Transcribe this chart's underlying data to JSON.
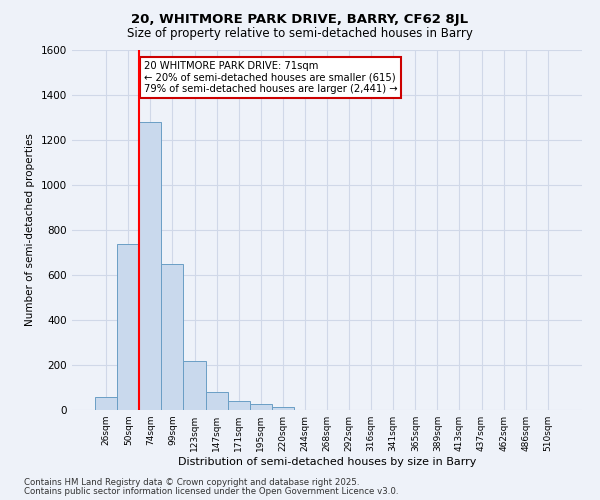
{
  "title1": "20, WHITMORE PARK DRIVE, BARRY, CF62 8JL",
  "title2": "Size of property relative to semi-detached houses in Barry",
  "xlabel": "Distribution of semi-detached houses by size in Barry",
  "ylabel": "Number of semi-detached properties",
  "categories": [
    "26sqm",
    "50sqm",
    "74sqm",
    "99sqm",
    "123sqm",
    "147sqm",
    "171sqm",
    "195sqm",
    "220sqm",
    "244sqm",
    "268sqm",
    "292sqm",
    "316sqm",
    "341sqm",
    "365sqm",
    "389sqm",
    "413sqm",
    "437sqm",
    "462sqm",
    "486sqm",
    "510sqm"
  ],
  "bar_heights": [
    60,
    740,
    1280,
    650,
    220,
    80,
    40,
    25,
    15,
    0,
    0,
    0,
    0,
    0,
    0,
    0,
    0,
    0,
    0,
    0,
    0
  ],
  "bar_color": "#c9d9ed",
  "bar_edge_color": "#6a9ec5",
  "grid_color": "#d0d8e8",
  "background_color": "#eef2f9",
  "annotation_text": "20 WHITMORE PARK DRIVE: 71sqm\n← 20% of semi-detached houses are smaller (615)\n79% of semi-detached houses are larger (2,441) →",
  "annotation_box_color": "#ffffff",
  "annotation_box_edge": "#cc0000",
  "ylim": [
    0,
    1600
  ],
  "yticks": [
    0,
    200,
    400,
    600,
    800,
    1000,
    1200,
    1400,
    1600
  ],
  "footnote1": "Contains HM Land Registry data © Crown copyright and database right 2025.",
  "footnote2": "Contains public sector information licensed under the Open Government Licence v3.0."
}
